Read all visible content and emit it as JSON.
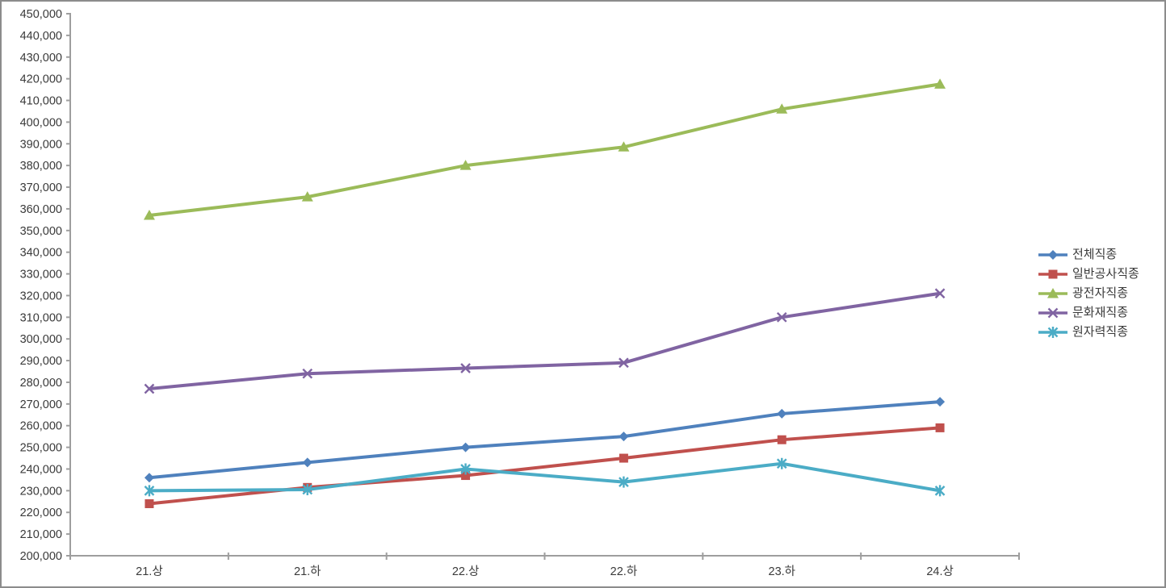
{
  "colors": {
    "background": "#ffffff",
    "canvas_border": "#8c8c8c",
    "axis": "#9e9e9e",
    "axis_text": "#3a3a3a",
    "series_blue": "#4F81BD",
    "series_red": "#C0504D",
    "series_green": "#9BBB59",
    "series_purple": "#8064A2",
    "series_cyan": "#4BACC6"
  },
  "chart_data": {
    "type": "line",
    "title": "",
    "xlabel": "",
    "ylabel": "",
    "grid": false,
    "legend_position": "right",
    "ylim": [
      200000,
      450000
    ],
    "ytick_step": 10000,
    "y_tick_labels": [
      "200,000",
      "210,000",
      "220,000",
      "230,000",
      "240,000",
      "250,000",
      "260,000",
      "270,000",
      "280,000",
      "290,000",
      "300,000",
      "310,000",
      "320,000",
      "330,000",
      "340,000",
      "350,000",
      "360,000",
      "370,000",
      "380,000",
      "390,000",
      "400,000",
      "410,000",
      "420,000",
      "430,000",
      "440,000",
      "450,000"
    ],
    "categories": [
      "21.상",
      "21.하",
      "22.상",
      "22.하",
      "23.하",
      "24.상"
    ],
    "series": [
      {
        "name": "전체직종",
        "color": "#4F81BD",
        "marker": "diamond",
        "values": [
          236000,
          243000,
          250000,
          255000,
          265500,
          271000
        ]
      },
      {
        "name": "일반공사직종",
        "color": "#C0504D",
        "marker": "square",
        "values": [
          224000,
          231500,
          237000,
          245000,
          253500,
          259000
        ]
      },
      {
        "name": "광전자직종",
        "color": "#9BBB59",
        "marker": "triangle",
        "values": [
          357000,
          365500,
          380000,
          388500,
          406000,
          417500
        ]
      },
      {
        "name": "문화재직종",
        "color": "#8064A2",
        "marker": "x",
        "values": [
          277000,
          284000,
          286500,
          289000,
          310000,
          321000
        ]
      },
      {
        "name": "원자력직종",
        "color": "#4BACC6",
        "marker": "asterisk",
        "values": [
          230000,
          230500,
          240000,
          234000,
          242500,
          230000
        ]
      }
    ]
  }
}
